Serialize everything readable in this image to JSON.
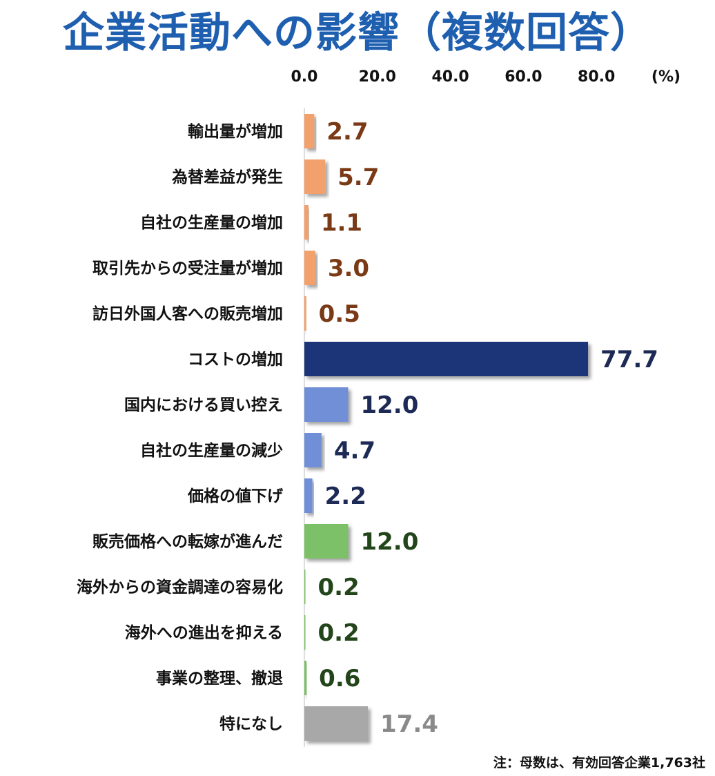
{
  "title": "企業活動への影響（複数回答）",
  "footnote": "注：母数は、有効回答企業1,763社",
  "colors": {
    "title": "#1f5fb0",
    "orange_bar": "#f2a06c",
    "orange_text": "#7a3a16",
    "navy_bar": "#1c3479",
    "navy_text": "#1c2a55",
    "blue_bar": "#6f8fd6",
    "blue_text": "#1c2a55",
    "green_bar": "#7cc068",
    "green_text": "#23451a",
    "gray_bar": "#a8a8a8",
    "gray_text": "#8a8a8a"
  },
  "chart_data": {
    "type": "bar",
    "orientation": "horizontal",
    "title": "企業活動への影響（複数回答）",
    "unit_label": "(%)",
    "xlim": [
      0,
      80
    ],
    "x_ticks": [
      "0.0",
      "20.0",
      "40.0",
      "60.0",
      "80.0"
    ],
    "x_tick_values": [
      0,
      20,
      40,
      60,
      80
    ],
    "axis_position": "top",
    "grid": false,
    "categories": [
      "輸出量が増加",
      "為替差益が発生",
      "自社の生産量の増加",
      "取引先からの受注量が増加",
      "訪日外国人客への販売増加",
      "コストの増加",
      "国内における買い控え",
      "自社の生産量の減少",
      "価格の値下げ",
      "販売価格への転嫁が進んだ",
      "海外からの資金調達の容易化",
      "海外への進出を抑える",
      "事業の整理、撤退",
      "特になし"
    ],
    "values": [
      2.7,
      5.7,
      1.1,
      3.0,
      0.5,
      77.7,
      12.0,
      4.7,
      2.2,
      12.0,
      0.2,
      0.2,
      0.6,
      17.4
    ],
    "value_labels": [
      "2.7",
      "5.7",
      "1.1",
      "3.0",
      "0.5",
      "77.7",
      "12.0",
      "4.7",
      "2.2",
      "12.0",
      "0.2",
      "0.2",
      "0.6",
      "17.4"
    ],
    "bar_colors": [
      "orange",
      "orange",
      "orange",
      "orange",
      "orange",
      "navy",
      "blue",
      "blue",
      "blue",
      "green",
      "green",
      "green",
      "green",
      "gray"
    ]
  }
}
